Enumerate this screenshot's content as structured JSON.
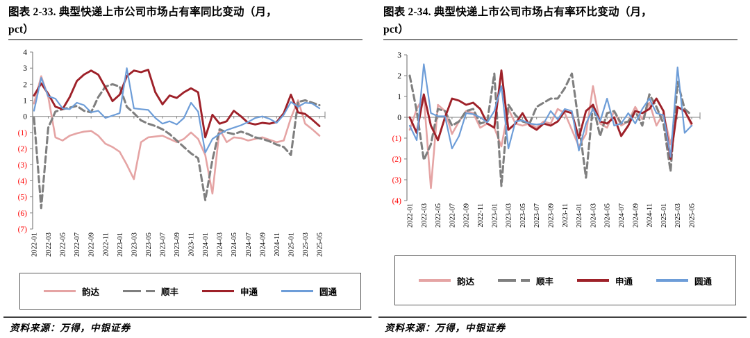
{
  "page": {
    "background": "#ffffff"
  },
  "panels": [
    {
      "title_line1": "图表 2-33. 典型快递上市公司市场占有率同比变动（月，",
      "title_line2": "pct）",
      "source": "资料来源：万得，中银证券",
      "chart_data": {
        "type": "line",
        "title": "典型快递上市公司市场占有率同比变动（月，pct）",
        "x": [
          "2022-01",
          "2022-02",
          "2022-03",
          "2022-04",
          "2022-05",
          "2022-06",
          "2022-07",
          "2022-08",
          "2022-09",
          "2022-10",
          "2022-11",
          "2022-12",
          "2023-01",
          "2023-02",
          "2023-03",
          "2023-04",
          "2023-05",
          "2023-06",
          "2023-07",
          "2023-08",
          "2023-09",
          "2023-10",
          "2023-11",
          "2023-12",
          "2024-01",
          "2024-02",
          "2024-03",
          "2024-04",
          "2024-05",
          "2024-06",
          "2024-07",
          "2024-08",
          "2024-09",
          "2024-10",
          "2024-11",
          "2024-12",
          "2025-01",
          "2025-02",
          "2025-03",
          "2025-04",
          "2025-05"
        ],
        "x_tick_every": 2,
        "ylim": [
          -7,
          4
        ],
        "yticks": [
          4,
          3,
          2,
          1,
          0,
          -1,
          -2,
          -3,
          -4,
          -5,
          -6,
          -7
        ],
        "grid": false,
        "legend_position": "bottom",
        "axis_color": "#808080",
        "tick_label_color": "#000000",
        "negative_tick_label_color": "#FF0000",
        "series": [
          {
            "id": "yunda",
            "name": "韵达",
            "color": "#E5A4A4",
            "dashed": false,
            "values": [
              0.8,
              2.5,
              1.2,
              -1.3,
              -1.5,
              -1.2,
              -1.05,
              -0.95,
              -0.9,
              -1.2,
              -1.7,
              -1.9,
              -2.2,
              -3.0,
              -3.9,
              -1.6,
              -1.3,
              -1.25,
              -1.2,
              -1.4,
              -1.6,
              -1.4,
              -1.0,
              -1.4,
              -2.4,
              -4.8,
              -0.8,
              -1.6,
              -1.3,
              -1.35,
              -1.5,
              -1.4,
              -1.3,
              -1.45,
              -1.6,
              -1.5,
              -0.1,
              1.0,
              -0.45,
              -0.8,
              -1.2
            ]
          },
          {
            "id": "shunfeng",
            "name": "顺丰",
            "color": "#7F7F7F",
            "dashed": true,
            "values": [
              -0.1,
              -5.7,
              -0.7,
              0.3,
              0.45,
              0.55,
              0.65,
              0.35,
              0.25,
              1.2,
              1.85,
              2.0,
              1.85,
              0.6,
              0.2,
              -0.25,
              -0.45,
              -0.6,
              -0.8,
              -1.1,
              -1.5,
              -1.9,
              -2.3,
              -2.6,
              -5.2,
              -2.7,
              -0.8,
              -1.0,
              -1.1,
              -0.95,
              -1.1,
              -1.3,
              -1.4,
              -1.55,
              -1.75,
              -1.9,
              -2.4,
              0.9,
              1.0,
              0.85,
              0.7
            ]
          },
          {
            "id": "shentong",
            "name": "申通",
            "color": "#9E2129",
            "dashed": false,
            "values": [
              1.3,
              2.05,
              1.4,
              0.6,
              0.45,
              1.2,
              2.2,
              2.6,
              2.85,
              2.6,
              1.8,
              0.95,
              1.35,
              2.5,
              2.85,
              2.75,
              2.9,
              1.5,
              0.75,
              1.3,
              1.15,
              1.5,
              1.75,
              1.5,
              -1.3,
              0.1,
              -0.45,
              -0.3,
              0.35,
              0.0,
              -0.4,
              -0.5,
              -0.4,
              -0.45,
              -0.35,
              0.2,
              1.35,
              0.25,
              0.15,
              -0.2,
              -0.6
            ]
          },
          {
            "id": "yuantong",
            "name": "圆通",
            "color": "#6D9DD8",
            "dashed": false,
            "values": [
              0.35,
              2.4,
              1.25,
              1.1,
              0.5,
              0.45,
              0.85,
              0.7,
              0.25,
              0.35,
              -0.1,
              0.05,
              0.2,
              3.0,
              0.5,
              0.45,
              0.4,
              -0.1,
              -0.45,
              -0.3,
              -0.5,
              -0.1,
              0.85,
              0.3,
              -2.25,
              -1.4,
              -1.1,
              -0.85,
              -0.7,
              -0.55,
              -0.35,
              -0.1,
              0.0,
              -0.15,
              -0.4,
              0.1,
              0.9,
              0.6,
              0.85,
              0.8,
              0.5
            ]
          }
        ]
      }
    },
    {
      "title_line1": "图表 2-34. 典型快递上市公司市场占有率环比变动（月，",
      "title_line2": "pct）",
      "source": "资料来源：万得，中银证券",
      "chart_data": {
        "type": "line",
        "title": "典型快递上市公司市场占有率环比变动（月，pct）",
        "x": [
          "2022-01",
          "2022-02",
          "2022-03",
          "2022-04",
          "2022-05",
          "2022-06",
          "2022-07",
          "2022-08",
          "2022-09",
          "2022-10",
          "2022-11",
          "2022-12",
          "2023-01",
          "2023-02",
          "2023-03",
          "2023-04",
          "2023-05",
          "2023-06",
          "2023-07",
          "2023-08",
          "2023-09",
          "2023-10",
          "2023-11",
          "2023-12",
          "2024-01",
          "2024-02",
          "2024-03",
          "2024-04",
          "2024-05",
          "2024-06",
          "2024-07",
          "2024-08",
          "2024-09",
          "2024-10",
          "2024-11",
          "2024-12",
          "2025-01",
          "2025-02",
          "2025-03",
          "2025-04",
          "2025-05"
        ],
        "x_tick_every": 2,
        "ylim": [
          -4,
          3
        ],
        "yticks": [
          3,
          2,
          1,
          0,
          -1,
          -2,
          -3,
          -4
        ],
        "grid": false,
        "legend_position": "bottom",
        "axis_color": "#808080",
        "tick_label_color": "#000000",
        "negative_tick_label_color": "#FF0000",
        "series": [
          {
            "id": "yunda",
            "name": "韵达",
            "color": "#E5A4A4",
            "dashed": false,
            "values": [
              -0.6,
              0.4,
              1.0,
              -3.4,
              0.6,
              0.3,
              -0.8,
              -0.2,
              0.3,
              0.2,
              -0.5,
              -0.3,
              -0.5,
              -1.4,
              0.4,
              -0.3,
              -0.4,
              -0.3,
              -0.5,
              -0.2,
              -0.3,
              0.4,
              0.2,
              -0.6,
              -1.4,
              -0.8,
              1.5,
              -0.3,
              -0.5,
              0.3,
              -0.4,
              -0.2,
              0.5,
              -0.1,
              0.7,
              -0.4,
              0.2,
              -1.3,
              0.5,
              0.3,
              -0.4
            ]
          },
          {
            "id": "shunfeng",
            "name": "顺丰",
            "color": "#7F7F7F",
            "dashed": true,
            "values": [
              2.0,
              0.3,
              -2.05,
              -1.3,
              0.4,
              0.3,
              -0.4,
              -0.2,
              0.3,
              0.4,
              -0.3,
              -0.2,
              2.1,
              -3.3,
              0.6,
              0.1,
              -0.2,
              -0.3,
              0.5,
              0.7,
              0.9,
              0.9,
              1.4,
              2.1,
              -0.3,
              -2.9,
              0.6,
              -0.9,
              0.2,
              0.3,
              -0.3,
              -0.2,
              0.3,
              -0.4,
              1.1,
              0.5,
              -0.3,
              -2.6,
              1.7,
              0.4,
              0.1
            ]
          },
          {
            "id": "shentong",
            "name": "申通",
            "color": "#9E2129",
            "dashed": false,
            "values": [
              0.0,
              -0.75,
              1.1,
              -0.4,
              -1.1,
              0.0,
              0.9,
              0.8,
              0.6,
              0.7,
              0.4,
              -0.3,
              -0.5,
              2.25,
              -0.6,
              -0.3,
              0.2,
              -0.4,
              -0.6,
              -0.3,
              -0.4,
              -0.2,
              0.3,
              0.2,
              -1.0,
              0.3,
              0.6,
              -0.2,
              -0.3,
              0.0,
              -0.9,
              -0.4,
              0.3,
              0.2,
              0.4,
              0.9,
              0.3,
              -2.0,
              0.5,
              0.3,
              -0.3
            ]
          },
          {
            "id": "yuantong",
            "name": "圆通",
            "color": "#6D9DD8",
            "dashed": false,
            "values": [
              -0.4,
              -1.1,
              2.55,
              0.2,
              0.05,
              0.05,
              -1.5,
              -0.9,
              0.2,
              0.15,
              0.0,
              -0.25,
              0.3,
              1.5,
              -1.5,
              -0.2,
              -0.15,
              -0.3,
              -0.35,
              -0.3,
              0.3,
              -0.1,
              0.4,
              0.3,
              -1.6,
              -0.3,
              0.4,
              -0.2,
              0.9,
              -0.4,
              -0.3,
              0.2,
              -0.3,
              0.4,
              0.9,
              0.2,
              0.1,
              -1.9,
              2.4,
              -0.75,
              -0.4
            ]
          }
        ]
      }
    }
  ]
}
